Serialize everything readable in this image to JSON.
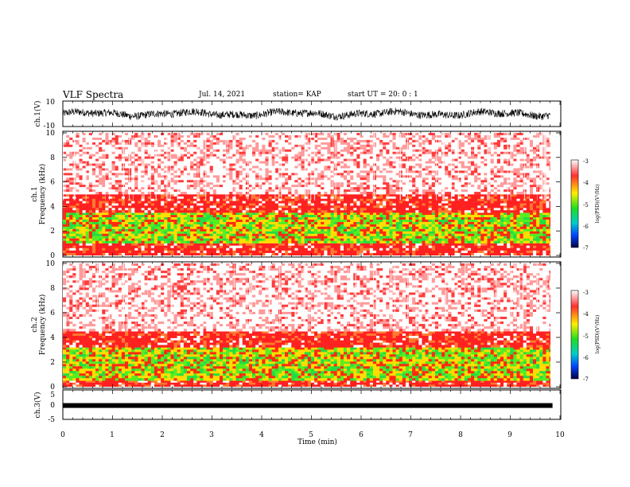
{
  "header": {
    "title": "VLF Spectra",
    "date": "Jul. 14, 2021",
    "station": "station= KAP",
    "start": "start UT =  20: 0  : 1"
  },
  "colorbar_label": "log(PSD)(V²/Hz)",
  "colors": {
    "background": "#ffffff",
    "spectrogram_high": "#ff1a1a",
    "spectrogram_mid": "#ffee00",
    "spectrogram_low": "#33ee33",
    "trace": "#000000"
  },
  "chart_data": [
    {
      "type": "line",
      "panel": "ch1-waveform",
      "ylabel": "ch.1(V)",
      "ylim": [
        -10,
        10
      ],
      "yticks": [
        "10",
        "-10"
      ],
      "xlim": [
        0,
        10
      ],
      "approx_envelope_V": [
        -4,
        4
      ]
    },
    {
      "type": "heatmap",
      "panel": "ch1-spectrogram",
      "ylabel_line1": "ch.1",
      "ylabel_line2": "Frequency (kHz)",
      "ylim": [
        0,
        10
      ],
      "yticks": [
        "0",
        "2",
        "4",
        "6",
        "8",
        "10"
      ],
      "xlim": [
        0,
        9.85
      ],
      "colorbar": {
        "ticks": [
          "-3",
          "-4",
          "-5",
          "-6",
          "-7"
        ],
        "range": [
          -7,
          -3
        ]
      },
      "bands_kHz": [
        {
          "from": 0,
          "to": 1.0,
          "level": "red"
        },
        {
          "from": 1.0,
          "to": 3.5,
          "level": "yellow-green"
        },
        {
          "from": 3.5,
          "to": 5.0,
          "level": "red"
        },
        {
          "from": 5.0,
          "to": 10,
          "level": "light-red"
        }
      ]
    },
    {
      "type": "heatmap",
      "panel": "ch2-spectrogram",
      "ylabel_line1": "ch.2",
      "ylabel_line2": "Frequency (kHz)",
      "ylim": [
        0,
        10
      ],
      "yticks": [
        "0",
        "2",
        "4",
        "6",
        "8",
        "10"
      ],
      "xlim": [
        0,
        9.85
      ],
      "colorbar": {
        "ticks": [
          "-3",
          "-4",
          "-5",
          "-6",
          "-7"
        ],
        "range": [
          -7,
          -3
        ]
      },
      "bands_kHz": [
        {
          "from": 0,
          "to": 0.5,
          "level": "red"
        },
        {
          "from": 0.5,
          "to": 3.2,
          "level": "yellow-green"
        },
        {
          "from": 3.2,
          "to": 4.5,
          "level": "red"
        },
        {
          "from": 4.5,
          "to": 10,
          "level": "light-red"
        }
      ]
    },
    {
      "type": "line",
      "panel": "ch3-waveform",
      "ylabel": "ch.3(V)",
      "ylim": [
        -5,
        5
      ],
      "yticks": [
        "5",
        "0",
        "-5"
      ],
      "xlim": [
        0,
        10
      ],
      "approx_level_V": -0.3
    }
  ],
  "xaxis": {
    "label": "Time (min)",
    "ticks": [
      "0",
      "1",
      "2",
      "3",
      "4",
      "5",
      "6",
      "7",
      "8",
      "9",
      "10"
    ],
    "range": [
      0,
      10
    ]
  }
}
